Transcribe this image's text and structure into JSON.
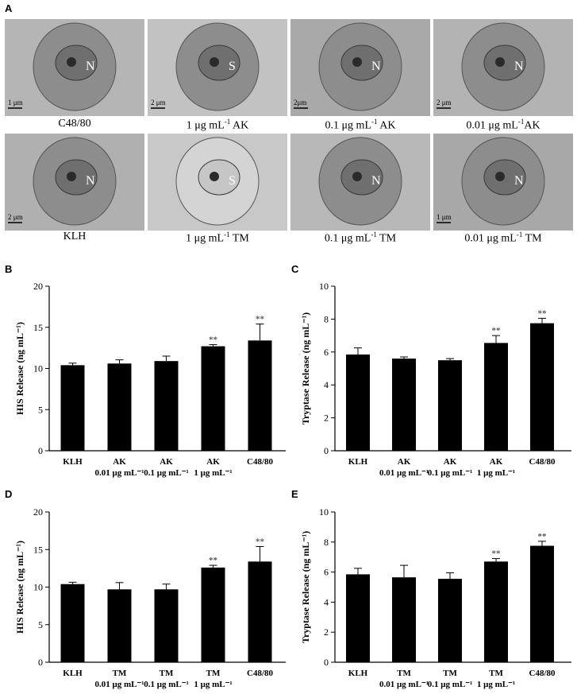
{
  "panel_A": {
    "label": "A",
    "images": [
      {
        "caption": "C48/80",
        "scale": "1 μm",
        "labels": [
          "N"
        ]
      },
      {
        "caption_main": "1 μg mL",
        "caption_sup": "-1",
        "caption_tail": " AK",
        "scale": "2 μm",
        "labels": [
          "S"
        ]
      },
      {
        "caption_main": "0.1 μg mL",
        "caption_sup": "-1",
        "caption_tail": " AK",
        "scale": "2μm",
        "labels": [
          "N"
        ]
      },
      {
        "caption_main": "0.01 μg mL",
        "caption_sup": "-1",
        "caption_tail": "AK",
        "scale": "2 μm",
        "labels": [
          "N"
        ]
      },
      {
        "caption": "KLH",
        "scale": "2 μm",
        "labels": [
          "N"
        ]
      },
      {
        "caption_main": "1 μg mL",
        "caption_sup": "-1",
        "caption_tail": " TM",
        "scale": "",
        "labels": [
          "S"
        ]
      },
      {
        "caption_main": "0.1 μg mL",
        "caption_sup": "-1",
        "caption_tail": " TM",
        "scale": "",
        "labels": [
          "N"
        ]
      },
      {
        "caption_main": "0.01 μg mL",
        "caption_sup": "-1",
        "caption_tail": " TM",
        "scale": "1 μm",
        "labels": [
          "N"
        ]
      }
    ]
  },
  "chart_data": [
    {
      "panel": "B",
      "type": "bar",
      "ylabel": "HIS Release (ng mL⁻¹)",
      "ylim": [
        0,
        20
      ],
      "yticks": [
        0,
        5,
        10,
        15,
        20
      ],
      "categories": [
        {
          "line1": "KLH",
          "line2": ""
        },
        {
          "line1": "AK",
          "line2": "0.01 μg mL⁻¹"
        },
        {
          "line1": "AK",
          "line2": "0.1 μg mL⁻¹"
        },
        {
          "line1": "AK",
          "line2": "1 μg mL⁻¹"
        },
        {
          "line1": "C48/80",
          "line2": ""
        }
      ],
      "values": [
        10.4,
        10.6,
        10.9,
        12.7,
        13.4
      ],
      "errors": [
        0.25,
        0.45,
        0.6,
        0.2,
        2.0
      ],
      "significance": [
        "",
        "",
        "",
        "**",
        "**"
      ]
    },
    {
      "panel": "C",
      "type": "bar",
      "ylabel": "Tryptase Release (ng mL⁻¹)",
      "ylim": [
        0,
        10
      ],
      "yticks": [
        0,
        2,
        4,
        6,
        8,
        10
      ],
      "categories": [
        {
          "line1": "KLH",
          "line2": ""
        },
        {
          "line1": "AK",
          "line2": "0.01 μg mL⁻¹"
        },
        {
          "line1": "AK",
          "line2": "0.1 μg mL⁻¹"
        },
        {
          "line1": "AK",
          "line2": "1 μg mL⁻¹"
        },
        {
          "line1": "C48/80",
          "line2": ""
        }
      ],
      "values": [
        5.85,
        5.6,
        5.5,
        6.55,
        7.75
      ],
      "errors": [
        0.4,
        0.1,
        0.1,
        0.45,
        0.3
      ],
      "significance": [
        "",
        "",
        "",
        "**",
        "**"
      ]
    },
    {
      "panel": "D",
      "type": "bar",
      "ylabel": "HIS Release (ng mL⁻¹)",
      "ylim": [
        0,
        20
      ],
      "yticks": [
        0,
        5,
        10,
        15,
        20
      ],
      "categories": [
        {
          "line1": "KLH",
          "line2": ""
        },
        {
          "line1": "TM",
          "line2": "0.01 μg mL⁻¹"
        },
        {
          "line1": "TM",
          "line2": "0.1 μg mL⁻¹"
        },
        {
          "line1": "TM",
          "line2": "1 μg mL⁻¹"
        },
        {
          "line1": "C48/80",
          "line2": ""
        }
      ],
      "values": [
        10.4,
        9.7,
        9.7,
        12.6,
        13.4
      ],
      "errors": [
        0.25,
        0.9,
        0.7,
        0.3,
        2.0
      ],
      "significance": [
        "",
        "",
        "",
        "**",
        "**"
      ]
    },
    {
      "panel": "E",
      "type": "bar",
      "ylabel": "Tryptase Release (ng mL⁻¹)",
      "ylim": [
        0,
        10
      ],
      "yticks": [
        0,
        2,
        4,
        6,
        8,
        10
      ],
      "categories": [
        {
          "line1": "KLH",
          "line2": ""
        },
        {
          "line1": "TM",
          "line2": "0.01 μg mL⁻¹"
        },
        {
          "line1": "TM",
          "line2": "0.1 μg mL⁻¹"
        },
        {
          "line1": "TM",
          "line2": "1 μg mL⁻¹"
        },
        {
          "line1": "C48/80",
          "line2": ""
        }
      ],
      "values": [
        5.85,
        5.65,
        5.55,
        6.7,
        7.75
      ],
      "errors": [
        0.4,
        0.8,
        0.4,
        0.2,
        0.3
      ],
      "significance": [
        "",
        "",
        "",
        "**",
        "**"
      ]
    }
  ]
}
